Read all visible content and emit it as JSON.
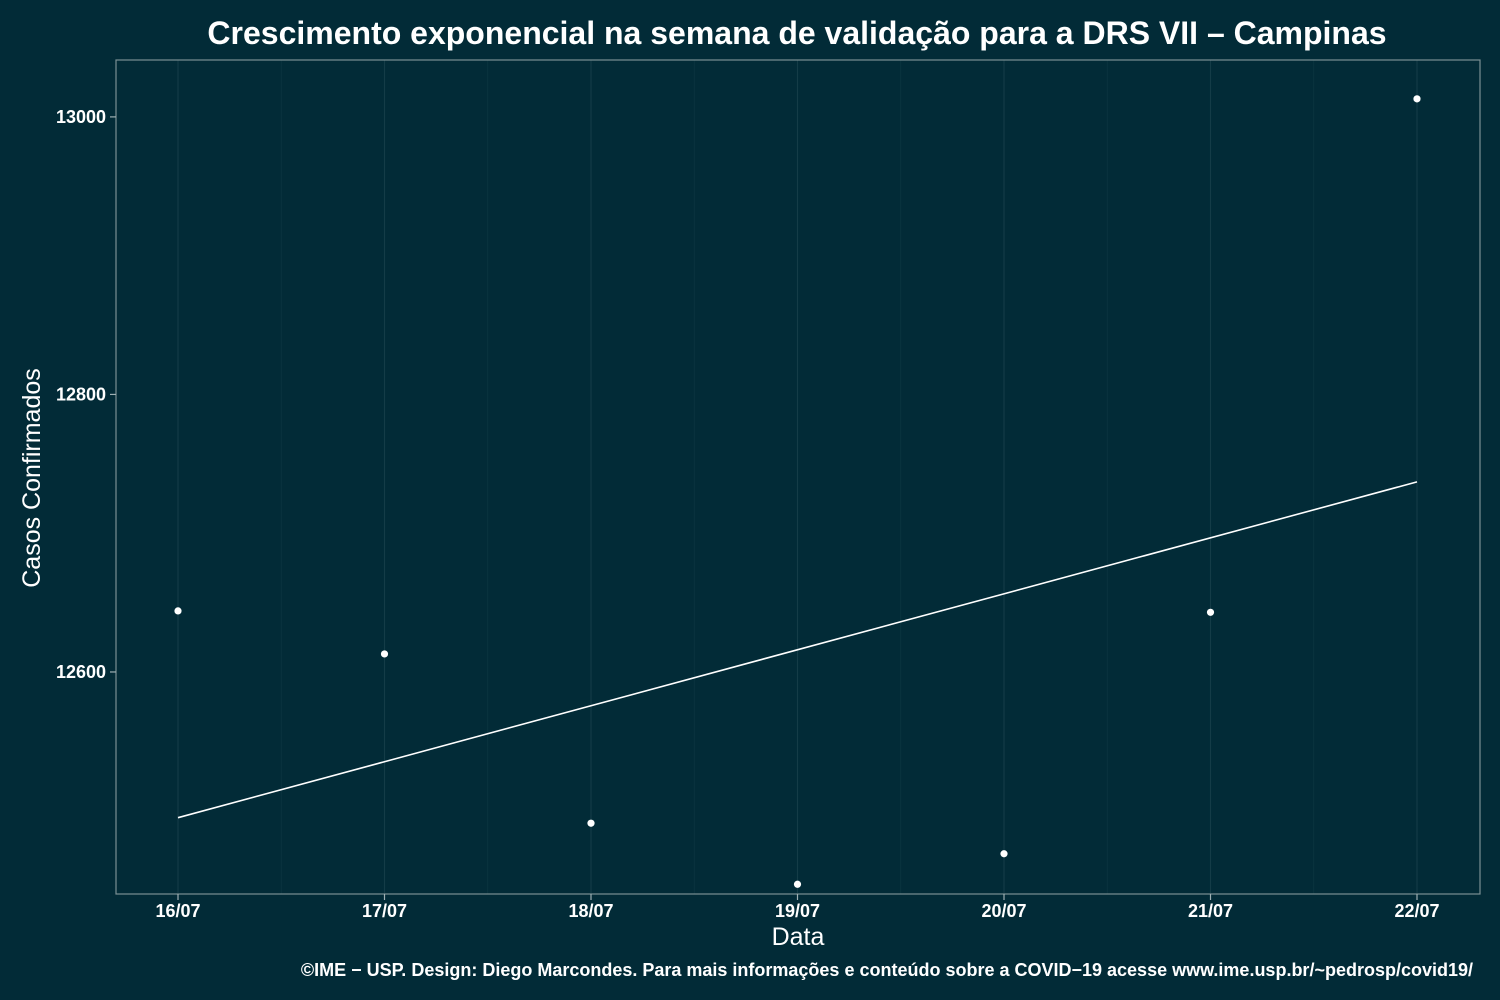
{
  "colors": {
    "background": "#022b37",
    "text": "#ffffff",
    "points": "#ffffff",
    "line": "#ffffff"
  },
  "chart_data": {
    "type": "scatter",
    "title": "Crescimento exponencial na semana de validação para a DRS VII – Campinas",
    "xlabel": "Data",
    "ylabel": "Casos Confirmados",
    "caption": "©IME − USP. Design: Diego Marcondes. Para mais informações e conteúdo sobre a COVID−19 acesse www.ime.usp.br/~pedrosp/covid19/",
    "categories": [
      "16/07",
      "17/07",
      "18/07",
      "19/07",
      "20/07",
      "21/07",
      "22/07"
    ],
    "y_ticks": [
      12600,
      12800,
      13000
    ],
    "ylim": [
      12440,
      13041
    ],
    "grid": true,
    "legend": "none",
    "series": [
      {
        "kind": "points",
        "x": [
          "16/07",
          "17/07",
          "18/07",
          "19/07",
          "20/07",
          "21/07",
          "22/07"
        ],
        "y": [
          12644,
          12613,
          12491,
          12447,
          12469,
          12643,
          13013
        ]
      },
      {
        "kind": "fitted-line",
        "x": [
          "16/07",
          "22/07"
        ],
        "y": [
          12495,
          12737
        ]
      }
    ]
  }
}
